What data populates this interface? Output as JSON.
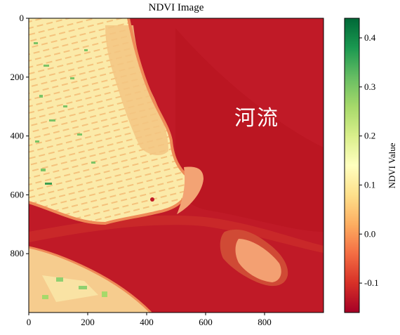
{
  "chart_data": {
    "type": "heatmap",
    "title": "NDVI Image",
    "image_size": [
      1000,
      1000
    ],
    "x_ticks": [
      0,
      200,
      400,
      600,
      800
    ],
    "y_ticks": [
      0,
      200,
      400,
      600,
      800
    ],
    "x_range": [
      0,
      1000
    ],
    "y_range": [
      0,
      1000
    ],
    "y_inverted": true,
    "colormap": "RdYlGn",
    "colorbar": {
      "label": "NDVI Value",
      "range": [
        -0.16,
        0.44
      ],
      "ticks": [
        -0.1,
        0.0,
        0.1,
        0.2,
        0.3,
        0.4
      ],
      "tick_labels": [
        "-0.1",
        "0.0",
        "0.1",
        "0.2",
        "0.3",
        "0.4"
      ],
      "colors": [
        "#a50026",
        "#d73027",
        "#f46d43",
        "#fdae61",
        "#fee08b",
        "#ffffbf",
        "#d9ef8b",
        "#a6d96a",
        "#66bd63",
        "#1a9850",
        "#006837"
      ]
    },
    "annotation": "河流",
    "regions": [
      {
        "name": "river",
        "ndvi": -0.13,
        "color": "#c01a27"
      },
      {
        "name": "urban-land-north",
        "ndvi": 0.08,
        "color": "#fbe8a8"
      },
      {
        "name": "urban-land-south",
        "ndvi": 0.06,
        "color": "#f9d995"
      },
      {
        "name": "sandbar",
        "ndvi": -0.02,
        "color": "#f4a574"
      },
      {
        "name": "vegetation-patches",
        "ndvi": 0.25,
        "color": "#66bd63"
      }
    ]
  },
  "colors": {
    "river": "#c01a27",
    "river_dark": "#a8111f",
    "land": "#fbe8a8",
    "land_alt": "#f6cf8c",
    "shore": "#ee8a55",
    "sandbar": "#f2a070"
  }
}
